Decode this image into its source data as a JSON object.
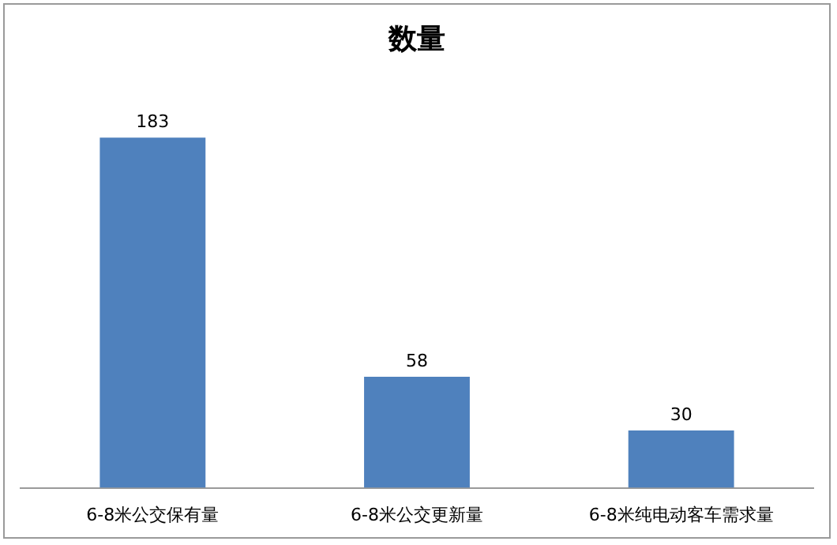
{
  "chart_data": {
    "type": "bar",
    "title": "数量",
    "categories": [
      "6-8米公交保有量",
      "6-8米公交更新量",
      "6-8米纯电动客车需求量"
    ],
    "values": [
      183,
      58,
      30
    ],
    "color": "#4f81bd",
    "data_labels": true,
    "grid": false,
    "legend": false
  }
}
